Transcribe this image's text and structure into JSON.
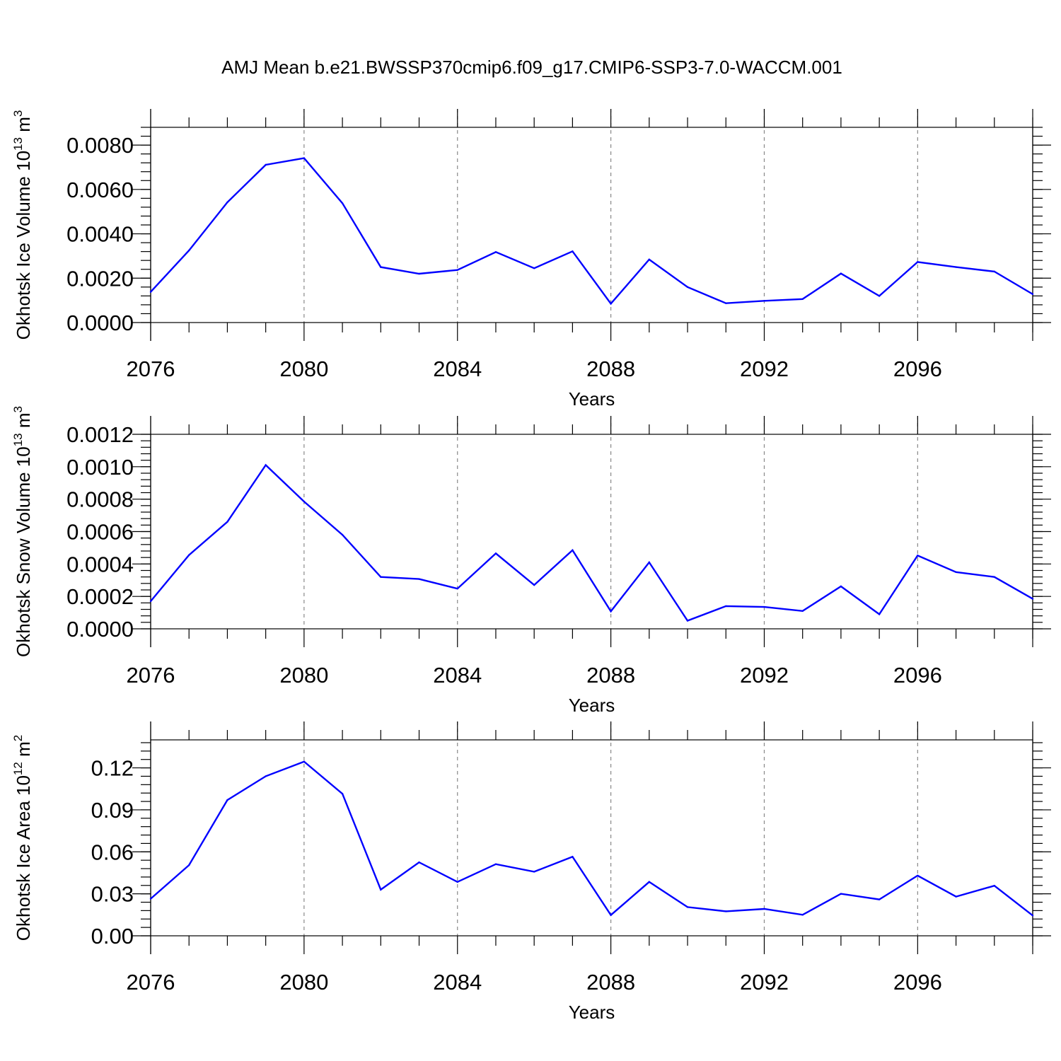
{
  "title": "AMJ Mean b.e21.BWSSP370cmip6.f09_g17.CMIP6-SSP3-7.0-WACCM.001",
  "colors": {
    "line": "#0000ff",
    "frame": "#000000",
    "grid": "#888888"
  },
  "chart_data": [
    {
      "type": "line",
      "title": "",
      "xlabel": "Years",
      "ylabel": {
        "text": "Okhotsk Ice Volume 10",
        "exp": "13",
        "unit": " m",
        "unit_exp": "3"
      },
      "xlim": [
        2076,
        2099
      ],
      "ylim": [
        0,
        0.0088
      ],
      "x_ticks": [
        2076,
        2080,
        2084,
        2088,
        2092,
        2096
      ],
      "y_ticks": [
        0.0,
        0.002,
        0.004,
        0.006,
        0.008
      ],
      "y_tick_labels": [
        "0.0000",
        "0.0020",
        "0.0040",
        "0.0060",
        "0.0080"
      ],
      "y_minor_step": 0.0004,
      "x": [
        2076,
        2077,
        2078,
        2079,
        2080,
        2081,
        2082,
        2083,
        2084,
        2085,
        2086,
        2087,
        2088,
        2089,
        2090,
        2091,
        2092,
        2093,
        2094,
        2095,
        2096,
        2097,
        2098,
        2099
      ],
      "series": [
        {
          "name": "Okhotsk Ice Volume",
          "values": [
            0.00138,
            0.00325,
            0.00542,
            0.00711,
            0.00741,
            0.00538,
            0.0025,
            0.0022,
            0.00237,
            0.00318,
            0.00245,
            0.00321,
            0.00085,
            0.00284,
            0.0016,
            0.00087,
            0.00098,
            0.00106,
            0.00221,
            0.0012,
            0.00273,
            0.0025,
            0.0023,
            0.00128
          ]
        }
      ]
    },
    {
      "type": "line",
      "title": "",
      "xlabel": "Years",
      "ylabel": {
        "text": "Okhotsk Snow Volume 10",
        "exp": "13",
        "unit": " m",
        "unit_exp": "3"
      },
      "xlim": [
        2076,
        2099
      ],
      "ylim": [
        0,
        0.0012
      ],
      "x_ticks": [
        2076,
        2080,
        2084,
        2088,
        2092,
        2096
      ],
      "y_ticks": [
        0.0,
        0.0002,
        0.0004,
        0.0006,
        0.0008,
        0.001,
        0.0012
      ],
      "y_tick_labels": [
        "0.0000",
        "0.0002",
        "0.0004",
        "0.0006",
        "0.0008",
        "0.0010",
        "0.0012"
      ],
      "y_minor_step": 4e-05,
      "x": [
        2076,
        2077,
        2078,
        2079,
        2080,
        2081,
        2082,
        2083,
        2084,
        2085,
        2086,
        2087,
        2088,
        2089,
        2090,
        2091,
        2092,
        2093,
        2094,
        2095,
        2096,
        2097,
        2098,
        2099
      ],
      "series": [
        {
          "name": "Okhotsk Snow Volume",
          "values": [
            0.00017,
            0.000455,
            0.00066,
            0.00101,
            0.000785,
            0.00058,
            0.00032,
            0.000307,
            0.000248,
            0.000465,
            0.00027,
            0.000485,
            0.000108,
            0.00041,
            5e-05,
            0.00014,
            0.000135,
            0.00011,
            0.000262,
            9e-05,
            0.000452,
            0.00035,
            0.00032,
            0.000185
          ]
        }
      ]
    },
    {
      "type": "line",
      "title": "",
      "xlabel": "Years",
      "ylabel": {
        "text": "Okhotsk Ice Area 10",
        "exp": "12",
        "unit": " m",
        "unit_exp": "2"
      },
      "xlim": [
        2076,
        2099
      ],
      "ylim": [
        0,
        0.14
      ],
      "x_ticks": [
        2076,
        2080,
        2084,
        2088,
        2092,
        2096
      ],
      "y_ticks": [
        0.0,
        0.03,
        0.06,
        0.09,
        0.12
      ],
      "y_tick_labels": [
        "0.00",
        "0.03",
        "0.06",
        "0.09",
        "0.12"
      ],
      "y_minor_step": 0.006,
      "x": [
        2076,
        2077,
        2078,
        2079,
        2080,
        2081,
        2082,
        2083,
        2084,
        2085,
        2086,
        2087,
        2088,
        2089,
        2090,
        2091,
        2092,
        2093,
        2094,
        2095,
        2096,
        2097,
        2098,
        2099
      ],
      "series": [
        {
          "name": "Okhotsk Ice Area",
          "values": [
            0.0265,
            0.0505,
            0.097,
            0.114,
            0.1245,
            0.1015,
            0.033,
            0.0525,
            0.0385,
            0.0512,
            0.0458,
            0.0565,
            0.0148,
            0.0385,
            0.0205,
            0.0175,
            0.0192,
            0.015,
            0.03,
            0.026,
            0.043,
            0.028,
            0.0358,
            0.0145
          ]
        }
      ]
    }
  ]
}
